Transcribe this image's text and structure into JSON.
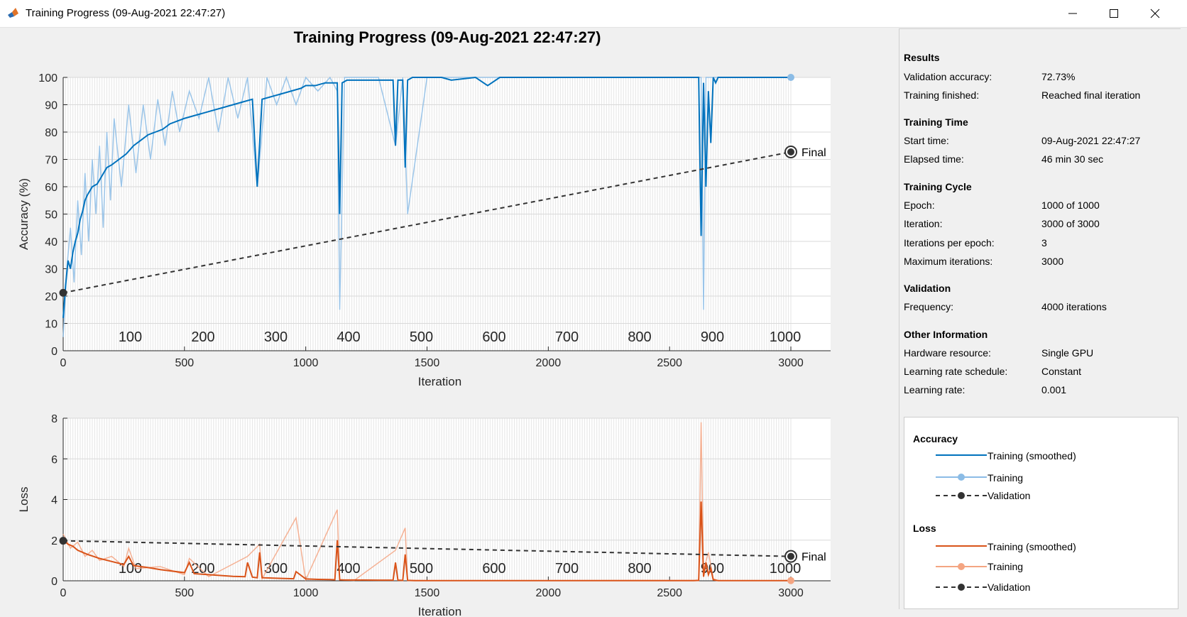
{
  "window": {
    "title": "Training Progress (09-Aug-2021 22:47:27)"
  },
  "colors": {
    "accuracy_smoothed": "#0072BD",
    "accuracy_raw": "#8BBCE6",
    "loss_smoothed": "#D95319",
    "loss_raw": "#F4A582",
    "validation": "#333333",
    "grid_band": "#e6e6e6"
  },
  "chart_data": [
    {
      "type": "line",
      "title": "Training Progress (09-Aug-2021 22:47:27)",
      "xlabel": "Iteration",
      "ylabel": "Accuracy (%)",
      "xlim": [
        0,
        3000
      ],
      "ylim": [
        0,
        100
      ],
      "xticks": [
        "0",
        "500",
        "1000",
        "1500",
        "2000",
        "2500",
        "3000"
      ],
      "yticks": [
        "0",
        "10",
        "20",
        "30",
        "40",
        "50",
        "60",
        "70",
        "80",
        "90",
        "100"
      ],
      "epoch_ticks": [
        "100",
        "200",
        "300",
        "400",
        "500",
        "600",
        "700",
        "800",
        "900",
        "1000"
      ],
      "epoch_label_y": 5,
      "series": [
        {
          "name": "Training (smoothed)",
          "x": [
            0,
            10,
            20,
            30,
            40,
            50,
            60,
            70,
            80,
            90,
            100,
            120,
            140,
            160,
            180,
            200,
            230,
            260,
            290,
            320,
            350,
            380,
            410,
            440,
            470,
            500,
            540,
            580,
            620,
            660,
            700,
            740,
            780,
            800,
            820,
            860,
            900,
            940,
            980,
            1000,
            1040,
            1080,
            1100,
            1120,
            1130,
            1140,
            1150,
            1170,
            1200,
            1250,
            1300,
            1340,
            1360,
            1370,
            1380,
            1400,
            1410,
            1420,
            1440,
            1480,
            1520,
            1560,
            1600,
            1700,
            1750,
            1800,
            1850,
            1900,
            2000,
            2100,
            2200,
            2300,
            2400,
            2500,
            2560,
            2620,
            2630,
            2640,
            2650,
            2660,
            2670,
            2680,
            2690,
            2700,
            2800,
            2900,
            3000
          ],
          "y": [
            12,
            24,
            33,
            30,
            36,
            40,
            43,
            48,
            51,
            55,
            57,
            60,
            61,
            64,
            67,
            68,
            70,
            72,
            75,
            77,
            79,
            80,
            81,
            83,
            84,
            85,
            86,
            87,
            88,
            89,
            90,
            91,
            92,
            60,
            92,
            93,
            94,
            95,
            96,
            97,
            97,
            98,
            98,
            98,
            98,
            50,
            98,
            99,
            99,
            99,
            99,
            99,
            99,
            75,
            99,
            99,
            67,
            99,
            100,
            100,
            100,
            100,
            99,
            100,
            97,
            100,
            100,
            100,
            100,
            100,
            100,
            100,
            100,
            100,
            100,
            100,
            42,
            98,
            60,
            95,
            76,
            100,
            98,
            100,
            100,
            100,
            100
          ]
        },
        {
          "name": "Training",
          "x": [
            0,
            15,
            30,
            45,
            60,
            75,
            90,
            105,
            120,
            135,
            150,
            165,
            180,
            195,
            210,
            240,
            270,
            300,
            330,
            360,
            390,
            420,
            450,
            480,
            520,
            560,
            600,
            640,
            680,
            720,
            760,
            800,
            840,
            880,
            920,
            960,
            1000,
            1050,
            1100,
            1130,
            1140,
            1160,
            1200,
            1300,
            1370,
            1400,
            1420,
            1500,
            1600,
            2000,
            2500,
            2630,
            2640,
            2650,
            2700,
            3000
          ],
          "y": [
            5,
            30,
            45,
            25,
            55,
            35,
            65,
            40,
            70,
            50,
            75,
            45,
            80,
            55,
            85,
            60,
            90,
            65,
            90,
            70,
            92,
            75,
            95,
            80,
            95,
            85,
            100,
            80,
            100,
            85,
            100,
            60,
            100,
            90,
            100,
            90,
            100,
            95,
            100,
            95,
            15,
            100,
            100,
            100,
            75,
            100,
            50,
            100,
            100,
            100,
            100,
            100,
            15,
            100,
            100,
            100
          ]
        },
        {
          "name": "Validation",
          "x": [
            0,
            3000
          ],
          "y": [
            21.2,
            72.73
          ]
        }
      ],
      "annotations": [
        "Final"
      ]
    },
    {
      "type": "line",
      "xlabel": "Iteration",
      "ylabel": "Loss",
      "xlim": [
        0,
        3000
      ],
      "ylim": [
        0,
        8
      ],
      "xticks": [
        "0",
        "500",
        "1000",
        "1500",
        "2000",
        "2500",
        "3000"
      ],
      "yticks": [
        "0",
        "2",
        "4",
        "6",
        "8"
      ],
      "epoch_ticks": [
        "100",
        "200",
        "300",
        "400",
        "500",
        "600",
        "700",
        "800",
        "900",
        "1000"
      ],
      "epoch_label_y": 0.6,
      "series": [
        {
          "name": "Training (smoothed)",
          "x": [
            0,
            20,
            40,
            60,
            80,
            100,
            150,
            200,
            250,
            270,
            290,
            350,
            400,
            500,
            520,
            540,
            600,
            700,
            750,
            760,
            780,
            800,
            810,
            820,
            900,
            950,
            960,
            1000,
            1050,
            1100,
            1120,
            1130,
            1140,
            1160,
            1200,
            1300,
            1360,
            1370,
            1380,
            1400,
            1410,
            1420,
            1450,
            1500,
            1700,
            2000,
            2400,
            2600,
            2620,
            2630,
            2640,
            2650,
            2660,
            2670,
            2680,
            2700,
            2800,
            3000
          ],
          "y": [
            2.0,
            1.8,
            1.7,
            1.5,
            1.4,
            1.3,
            1.1,
            0.95,
            0.8,
            1.2,
            0.75,
            0.65,
            0.55,
            0.4,
            0.9,
            0.35,
            0.3,
            0.22,
            0.2,
            0.9,
            0.18,
            0.15,
            1.4,
            0.15,
            0.12,
            0.1,
            0.45,
            0.09,
            0.07,
            0.06,
            0.05,
            2.0,
            0.05,
            0.04,
            0.04,
            0.03,
            0.03,
            0.9,
            0.03,
            0.02,
            1.3,
            0.02,
            0.01,
            0.01,
            0.01,
            0.01,
            0.01,
            0.01,
            0.02,
            3.9,
            0.2,
            0.9,
            0.3,
            0.6,
            0.05,
            0.01,
            0.01,
            0.01
          ]
        },
        {
          "name": "Training",
          "x": [
            0,
            30,
            60,
            90,
            120,
            150,
            200,
            250,
            270,
            300,
            400,
            500,
            520,
            600,
            760,
            810,
            820,
            960,
            1000,
            1130,
            1140,
            1200,
            1370,
            1410,
            1420,
            1500,
            2000,
            2620,
            2630,
            2640,
            2660,
            2680,
            2700,
            3000
          ],
          "y": [
            2.3,
            1.6,
            1.9,
            1.2,
            1.5,
            1.0,
            1.2,
            0.7,
            1.6,
            0.6,
            0.7,
            0.3,
            1.1,
            0.2,
            1.2,
            1.8,
            0.1,
            3.1,
            0.05,
            3.5,
            0.05,
            0.02,
            1.5,
            2.6,
            0.02,
            0.01,
            0.01,
            0.02,
            7.8,
            0.5,
            1.4,
            0.1,
            0.01,
            0.01
          ]
        },
        {
          "name": "Validation",
          "x": [
            0,
            3000
          ],
          "y": [
            1.97,
            1.2
          ]
        }
      ],
      "annotations": [
        "Final"
      ]
    }
  ],
  "sidebar": {
    "sections": [
      {
        "title": "Results",
        "rows": [
          {
            "label": "Validation accuracy:",
            "value": "72.73%"
          },
          {
            "label": "Training finished:",
            "value": "Reached final iteration"
          }
        ]
      },
      {
        "title": "Training Time",
        "rows": [
          {
            "label": "Start time:",
            "value": "09-Aug-2021 22:47:27"
          },
          {
            "label": "Elapsed time:",
            "value": "46 min 30 sec"
          }
        ]
      },
      {
        "title": "Training Cycle",
        "rows": [
          {
            "label": "Epoch:",
            "value": "1000 of 1000"
          },
          {
            "label": "Iteration:",
            "value": "3000 of 3000"
          },
          {
            "label": "Iterations per epoch:",
            "value": "3"
          },
          {
            "label": "Maximum iterations:",
            "value": "3000"
          }
        ]
      },
      {
        "title": "Validation",
        "rows": [
          {
            "label": "Frequency:",
            "value": "4000 iterations"
          }
        ]
      },
      {
        "title": "Other Information",
        "rows": [
          {
            "label": "Hardware resource:",
            "value": "Single GPU"
          },
          {
            "label": "Learning rate schedule:",
            "value": "Constant"
          },
          {
            "label": "Learning rate:",
            "value": "0.001"
          }
        ]
      }
    ]
  },
  "legend": {
    "groups": [
      {
        "title": "Accuracy",
        "items": [
          {
            "label": "Training (smoothed)",
            "style": "smoothed",
            "color": "#0072BD"
          },
          {
            "label": "Training",
            "style": "raw",
            "color": "#8BBCE6"
          },
          {
            "label": "Validation",
            "style": "validation",
            "color": "#333333"
          }
        ]
      },
      {
        "title": "Loss",
        "items": [
          {
            "label": "Training (smoothed)",
            "style": "smoothed",
            "color": "#D95319"
          },
          {
            "label": "Training",
            "style": "raw",
            "color": "#F4A582"
          },
          {
            "label": "Validation",
            "style": "validation",
            "color": "#333333"
          }
        ]
      }
    ]
  }
}
